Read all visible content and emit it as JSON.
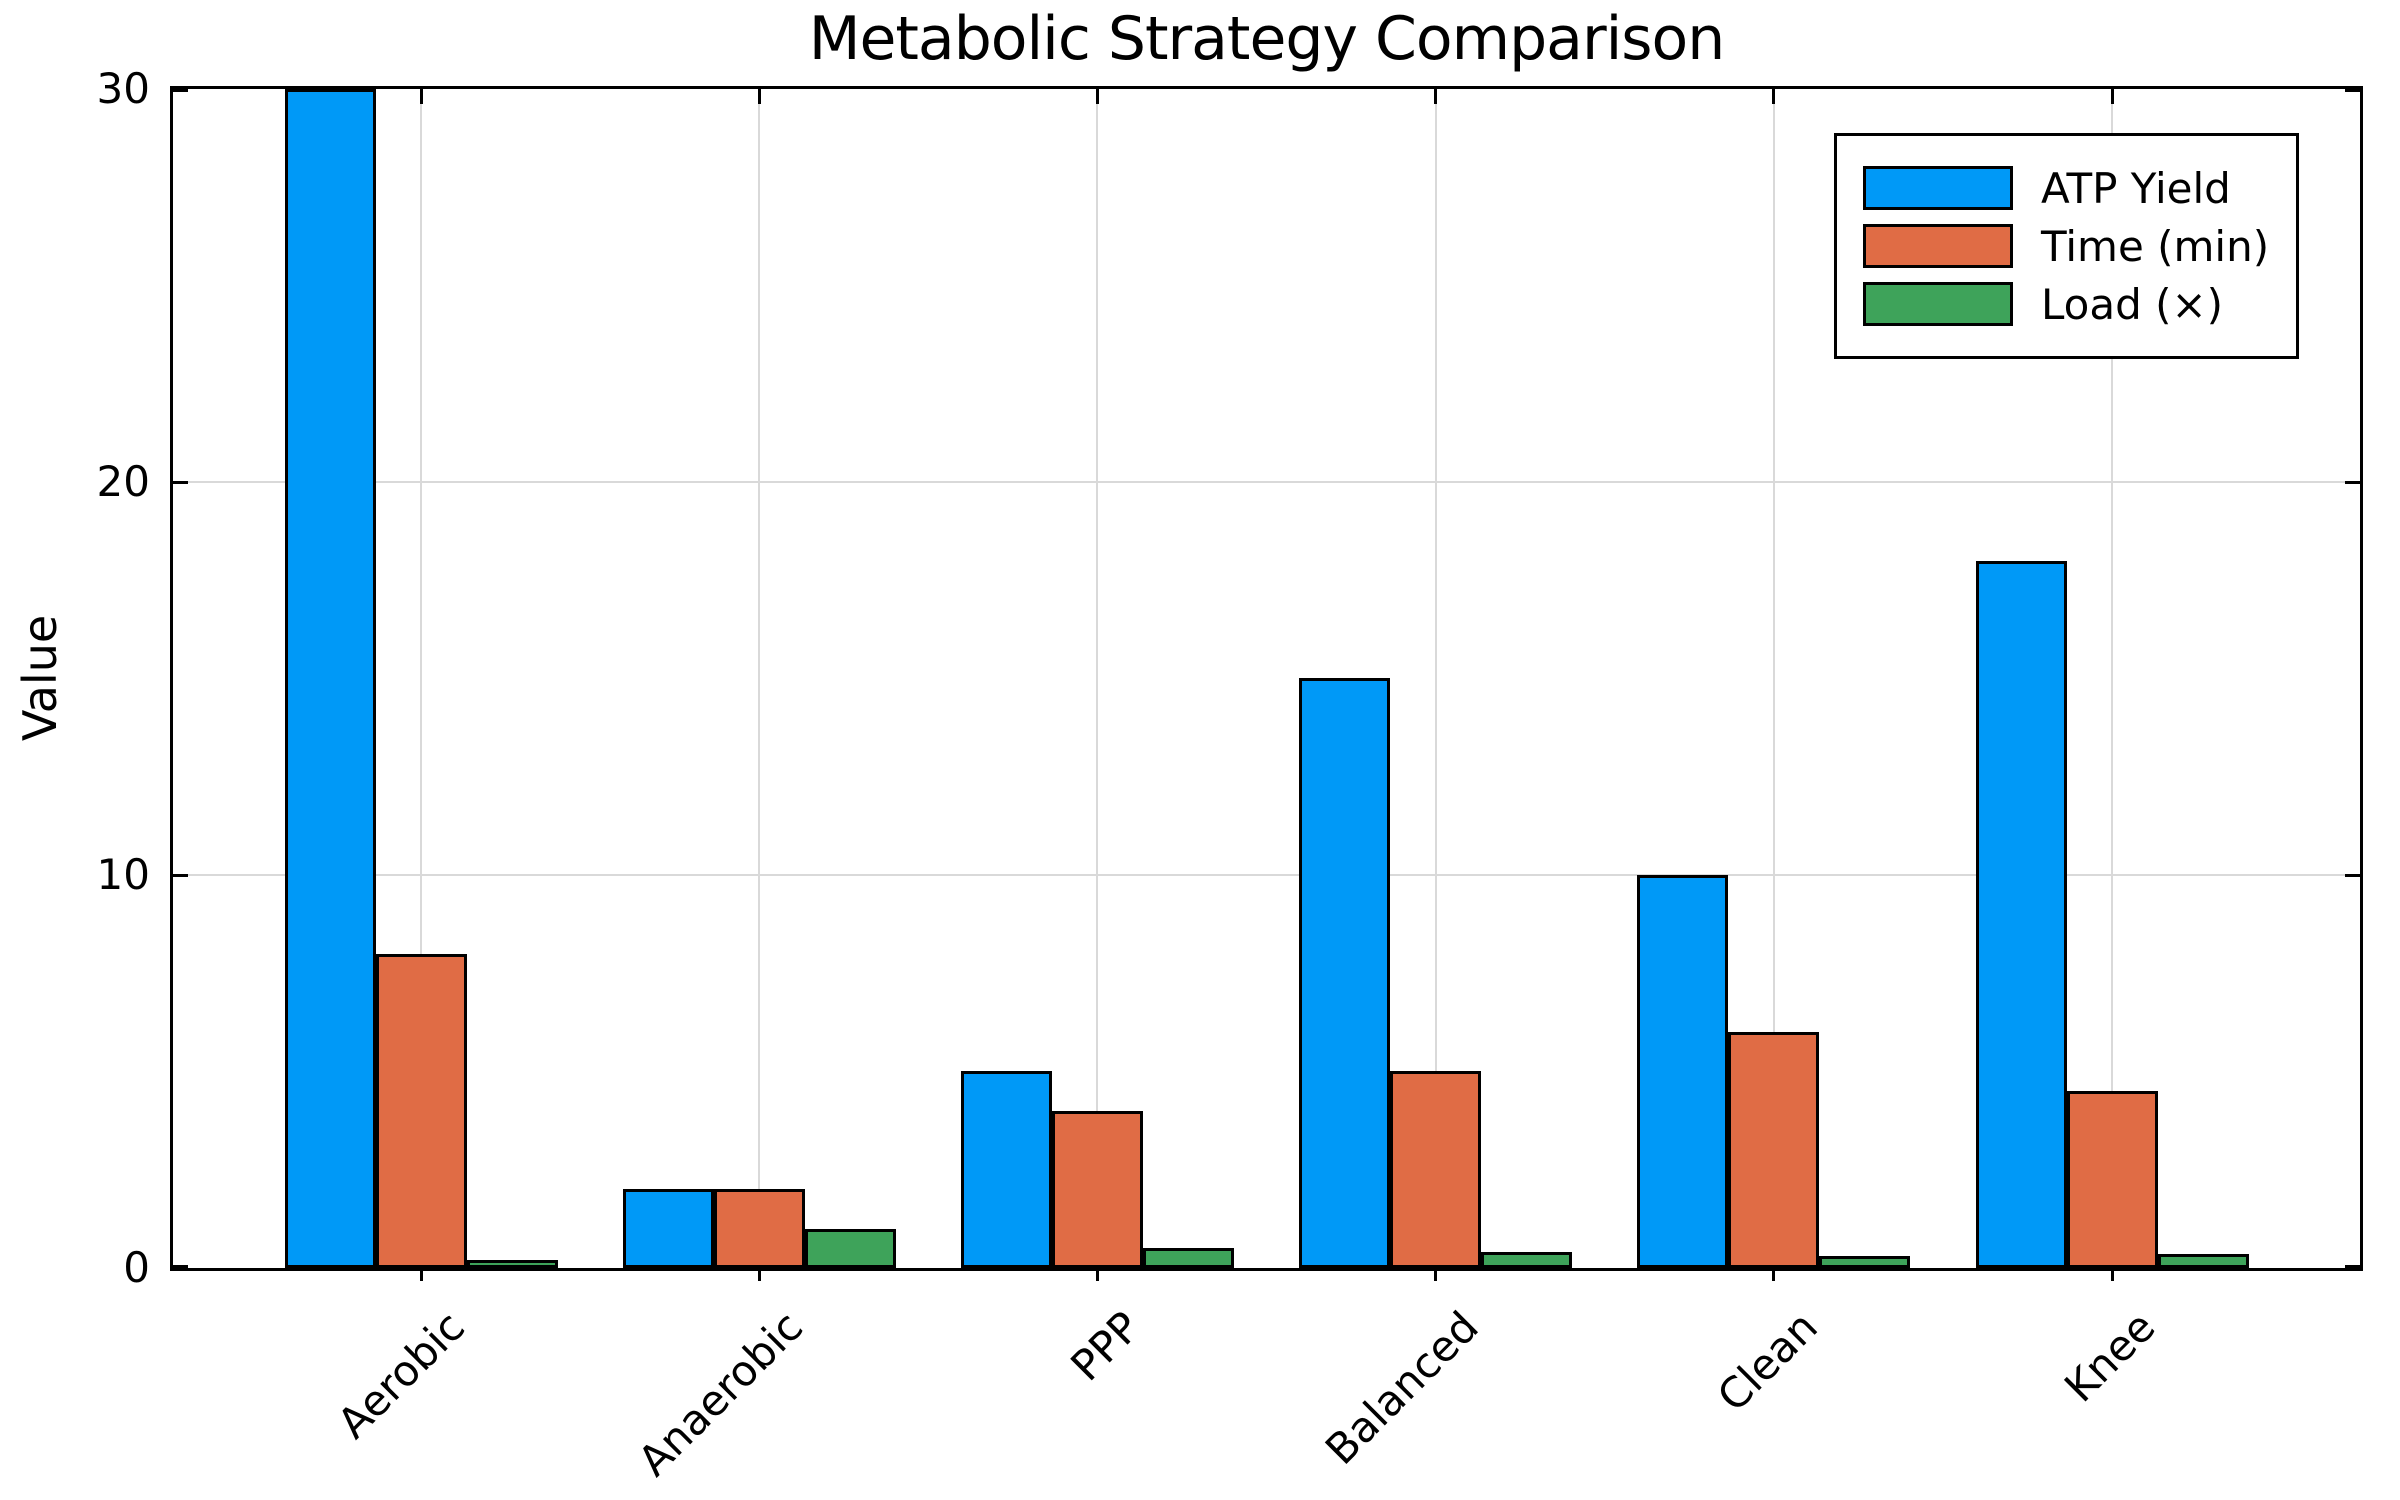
{
  "figure": {
    "background": "#ffffff"
  },
  "chart_data": {
    "type": "bar",
    "title": "Metabolic Strategy Comparison",
    "ylabel": "Value",
    "xlabel": "",
    "categories": [
      "Aerobic",
      "Anaerobic",
      "PPP",
      "Balanced",
      "Clean",
      "Knee"
    ],
    "series": [
      {
        "name": "ATP Yield",
        "color": "#0099f7",
        "values": [
          30,
          2,
          5,
          15,
          10,
          18
        ]
      },
      {
        "name": "Time (min)",
        "color": "#e06c45",
        "values": [
          8,
          2,
          4,
          5,
          6,
          4.5
        ]
      },
      {
        "name": "Load (×)",
        "color": "#3ea35a",
        "values": [
          0.2,
          1,
          0.5,
          0.4,
          0.3,
          0.35
        ]
      }
    ],
    "ylim": [
      0,
      30
    ],
    "yticks": [
      0,
      10,
      20,
      30
    ],
    "grid": true,
    "grid_color": "#d9d9d9",
    "bar_edge_color": "#000000",
    "legend_position": "upper right",
    "legend_entries": [
      "ATP Yield",
      "Time (min)",
      "Load (×)"
    ]
  }
}
